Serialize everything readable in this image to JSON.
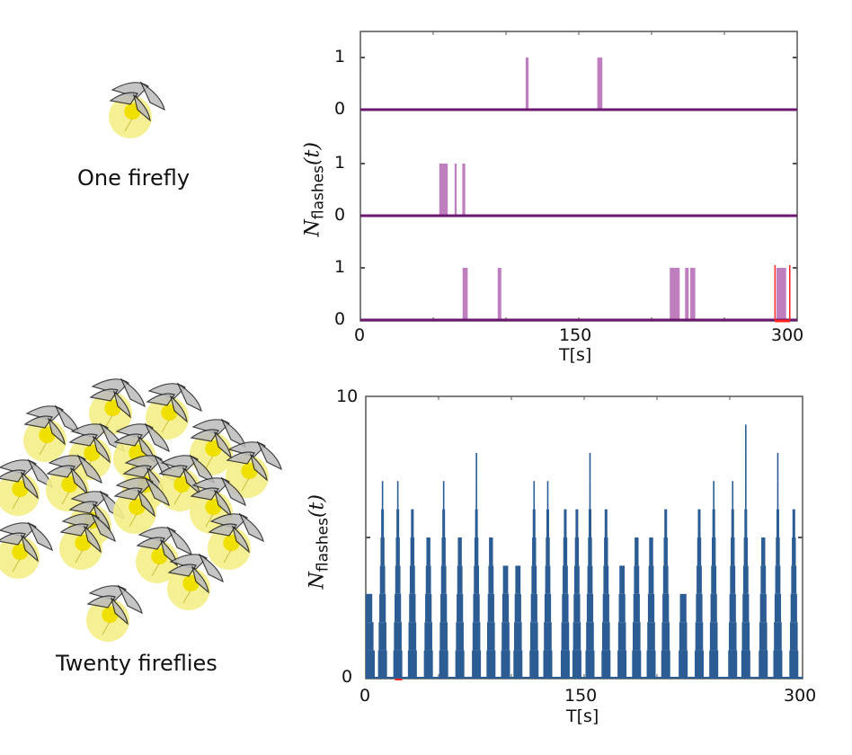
{
  "labels": {
    "one_firefly": "One firefly",
    "twenty_fireflies": "Twenty fireflies"
  },
  "colors": {
    "firefly_glow": "#f5ee8a",
    "firefly_core": "#f0e000",
    "single_line": "#6a1a6e",
    "single_fill": "#bf7fbf",
    "highlight": "#ff2020",
    "group_fill": "#2b5c94"
  },
  "chart_data": [
    {
      "type": "line",
      "description_of_kind": "stacked step traces",
      "ylabel_main": "N",
      "ylabel_sub": "flashes",
      "ylabel_arg": "(t)",
      "xlabel": "T[s]",
      "xlim": [
        0,
        300
      ],
      "xticks": [
        "0",
        "150",
        "300"
      ],
      "ylim": [
        0,
        1
      ],
      "yticks": [
        "0",
        "1"
      ],
      "series": [
        {
          "pulses": [
            [
              113.5,
              115.5
            ],
            [
              162.7,
              166.2
            ]
          ]
        },
        {
          "pulses": [
            [
              54.2,
              60.0
            ],
            [
              64.7,
              66.1
            ],
            [
              70.0,
              72.0
            ]
          ]
        },
        {
          "pulses": [
            [
              70.2,
              73.7
            ],
            [
              94.3,
              96.8
            ],
            [
              212.5,
              219.3
            ],
            [
              223.0,
              225.5
            ],
            [
              226.5,
              230.0
            ],
            [
              285.8,
              292.4
            ]
          ],
          "highlight_window": [
            284.8,
            294.9
          ]
        }
      ]
    },
    {
      "type": "bar",
      "ylabel_main": "N",
      "ylabel_sub": "flashes",
      "ylabel_arg": "(t)",
      "xlabel": "T[s]",
      "xlim": [
        0,
        300
      ],
      "xticks": [
        "0",
        "150",
        "300"
      ],
      "ylim": [
        0,
        10
      ],
      "yticks": [
        "0",
        "10"
      ],
      "peaks": [
        {
          "t": 0.6,
          "n": 3
        },
        {
          "t": 11.5,
          "n": 7
        },
        {
          "t": 22,
          "n": 7
        },
        {
          "t": 32,
          "n": 6
        },
        {
          "t": 43,
          "n": 5
        },
        {
          "t": 53.5,
          "n": 7
        },
        {
          "t": 64.6,
          "n": 5
        },
        {
          "t": 76,
          "n": 8
        },
        {
          "t": 86,
          "n": 5
        },
        {
          "t": 96,
          "n": 4
        },
        {
          "t": 104.5,
          "n": 4
        },
        {
          "t": 115.6,
          "n": 7
        },
        {
          "t": 125,
          "n": 7
        },
        {
          "t": 137,
          "n": 6
        },
        {
          "t": 145,
          "n": 6
        },
        {
          "t": 154,
          "n": 8
        },
        {
          "t": 165,
          "n": 6
        },
        {
          "t": 176,
          "n": 4
        },
        {
          "t": 186,
          "n": 5
        },
        {
          "t": 196,
          "n": 5
        },
        {
          "t": 206,
          "n": 6
        },
        {
          "t": 218,
          "n": 3
        },
        {
          "t": 229,
          "n": 6
        },
        {
          "t": 239,
          "n": 7
        },
        {
          "t": 252,
          "n": 7
        },
        {
          "t": 261,
          "n": 9
        },
        {
          "t": 273,
          "n": 5
        },
        {
          "t": 283,
          "n": 8
        },
        {
          "t": 294,
          "n": 6
        }
      ]
    }
  ]
}
